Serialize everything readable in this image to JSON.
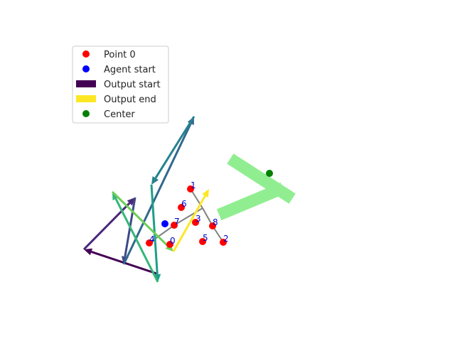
{
  "chart_data": {
    "type": "scatter",
    "title": "",
    "xlabel": "",
    "ylabel": "",
    "grid": false,
    "axes_visible": false,
    "xlim": [
      0,
      640
    ],
    "ylim": [
      480,
      0
    ],
    "legend": {
      "placement": "top-left",
      "entries": [
        {
          "label": "Point 0",
          "kind": "dot",
          "color": "#ff0000"
        },
        {
          "label": "Agent start",
          "kind": "dot",
          "color": "#0000ff"
        },
        {
          "label": "Output start",
          "kind": "bar",
          "color": "#440154"
        },
        {
          "label": "Output end",
          "kind": "bar",
          "color": "#fde725"
        },
        {
          "label": "Center",
          "kind": "dot",
          "color": "#008000"
        }
      ]
    },
    "points": [
      {
        "label": "0",
        "x": 239,
        "y": 344
      },
      {
        "label": "1",
        "x": 268,
        "y": 266
      },
      {
        "label": "2",
        "x": 314,
        "y": 341
      },
      {
        "label": "3",
        "x": 275,
        "y": 313
      },
      {
        "label": "4",
        "x": 210,
        "y": 342
      },
      {
        "label": "5",
        "x": 285,
        "y": 340
      },
      {
        "label": "6",
        "x": 255,
        "y": 292
      },
      {
        "label": "7",
        "x": 245,
        "y": 317
      },
      {
        "label": "8",
        "x": 299,
        "y": 318
      }
    ],
    "point_color": "#ff0000",
    "agent_start": {
      "x": 232,
      "y": 315,
      "color": "#0000ff"
    },
    "center": {
      "x": 379,
      "y": 244,
      "color": "#008000"
    },
    "skeleton": {
      "color": "#808080",
      "segments": [
        [
          [
            268,
            266
          ],
          [
            285,
            293
          ]
        ],
        [
          [
            285,
            293
          ],
          [
            299,
            318
          ]
        ],
        [
          [
            299,
            318
          ],
          [
            314,
            341
          ]
        ],
        [
          [
            285,
            293
          ],
          [
            245,
            317
          ]
        ],
        [
          [
            245,
            317
          ],
          [
            210,
            342
          ]
        ]
      ]
    },
    "trajectory": {
      "colormap": "viridis",
      "path": [
        [
          220,
          385
        ],
        [
          118,
          351
        ],
        [
          190,
          278
        ],
        [
          174,
          372
        ],
        [
          273,
          164
        ],
        [
          213,
          260
        ],
        [
          222,
          397
        ],
        [
          158,
          270
        ],
        [
          244,
          354
        ],
        [
          294,
          266
        ]
      ],
      "colors": [
        "#440154",
        "#482878",
        "#3e4989",
        "#31688e",
        "#26828e",
        "#1f9e89",
        "#35b779",
        "#6ece58",
        "#fde725"
      ]
    },
    "shape": {
      "color": "#90ee90",
      "bar1": [
        [
          331,
          228
        ],
        [
          404,
          275
        ]
      ],
      "bar2": [
        [
          390,
          268
        ],
        [
          316,
          299
        ]
      ],
      "width": 16
    }
  }
}
